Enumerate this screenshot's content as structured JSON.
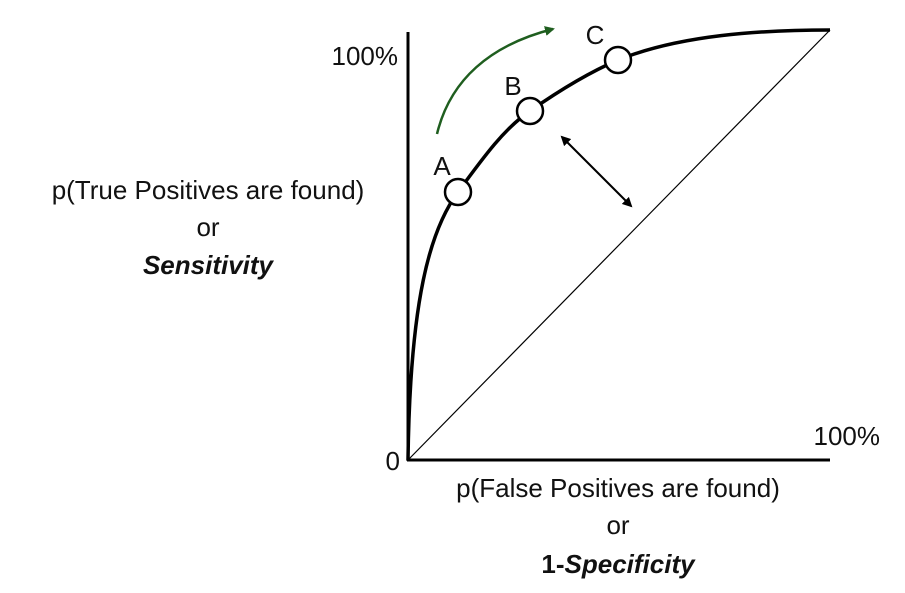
{
  "y_axis": {
    "top_label": "100%",
    "origin_label": "0",
    "title_line_1": "p(True Positives are found)",
    "title_line_2": "or",
    "title_line_3": "Sensitivity"
  },
  "x_axis": {
    "end_label": "100%",
    "title_line_1": "p(False Positives are found)",
    "title_line_2": "or",
    "title_line_3_prefix": "1-",
    "title_line_3_emphasis": "Specificity"
  },
  "points": [
    {
      "label": "A"
    },
    {
      "label": "B"
    },
    {
      "label": "C"
    }
  ]
}
